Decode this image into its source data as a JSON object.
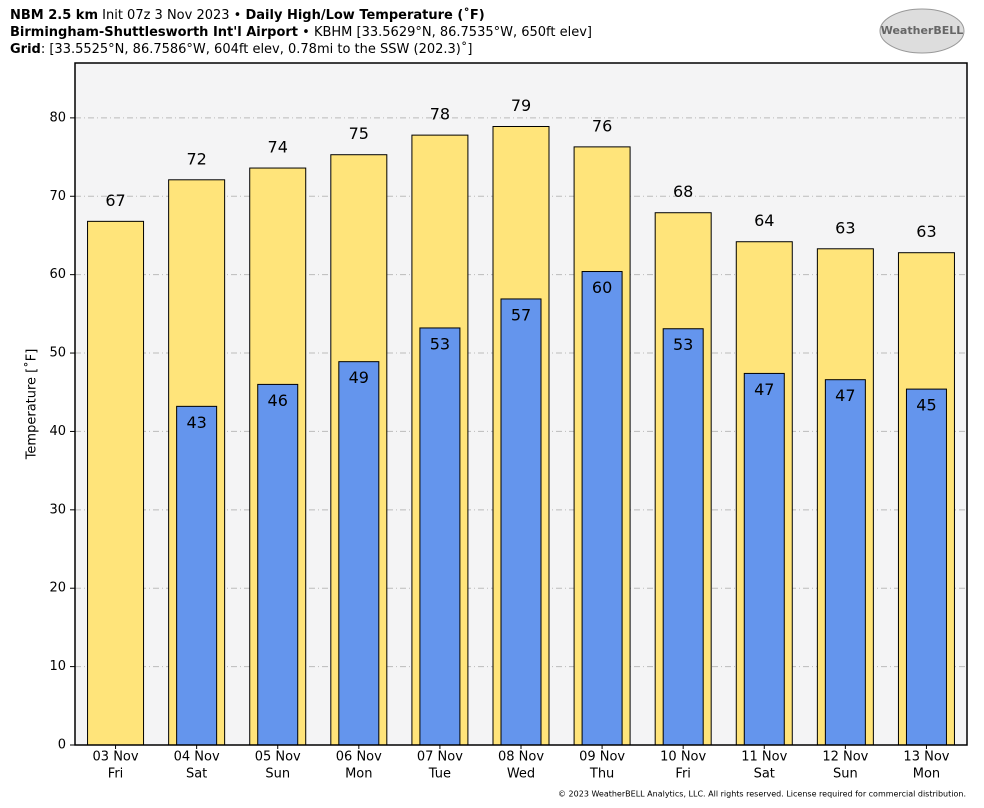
{
  "header": {
    "lines": [
      [
        {
          "text": "NBM 2.5 km",
          "bold": true
        },
        {
          "text": " Init 07z 3 Nov 2023 • ",
          "bold": false
        },
        {
          "text": "Daily High/Low Temperature (˚F)",
          "bold": true
        }
      ],
      [
        {
          "text": "Birmingham-Shuttlesworth Int'l Airport",
          "bold": true
        },
        {
          "text": " • KBHM [33.5629°N, 86.7535°W, 650ft elev]",
          "bold": false
        }
      ],
      [
        {
          "text": "Grid",
          "bold": true
        },
        {
          "text": ": [33.5525°N, 86.7586°W, 604ft elev, 0.78mi to the SSW (202.3)˚]",
          "bold": false
        }
      ]
    ],
    "logo": "WeatherBELL"
  },
  "footer": "© 2023 WeatherBELL Analytics, LLC. All rights reserved. License required for commercial distribution.",
  "chart_data": {
    "type": "bar",
    "y_label": "Temperature [˚F]",
    "categories": [
      [
        "03 Nov",
        "Fri"
      ],
      [
        "04 Nov",
        "Sat"
      ],
      [
        "05 Nov",
        "Sun"
      ],
      [
        "06 Nov",
        "Mon"
      ],
      [
        "07 Nov",
        "Tue"
      ],
      [
        "08 Nov",
        "Wed"
      ],
      [
        "09 Nov",
        "Thu"
      ],
      [
        "10 Nov",
        "Fri"
      ],
      [
        "11 Nov",
        "Sat"
      ],
      [
        "12 Nov",
        "Sun"
      ],
      [
        "13 Nov",
        "Mon"
      ]
    ],
    "series": [
      {
        "name": "High",
        "color": "#ffe47a",
        "values": [
          66.8,
          72.1,
          73.6,
          75.3,
          77.8,
          78.9,
          76.3,
          67.9,
          64.2,
          63.3,
          62.8
        ],
        "value_labels": [
          "67",
          "72",
          "74",
          "75",
          "78",
          "79",
          "76",
          "68",
          "64",
          "63",
          "63"
        ]
      },
      {
        "name": "Low",
        "color": "#6495ed",
        "values": [
          null,
          43.2,
          46.0,
          48.9,
          53.2,
          56.9,
          60.4,
          53.1,
          47.4,
          46.6,
          45.4
        ],
        "value_labels": [
          null,
          "43",
          "46",
          "49",
          "53",
          "57",
          "60",
          "53",
          "47",
          "47",
          "45"
        ]
      }
    ],
    "ylim": [
      0,
      87
    ],
    "yticks": [
      0,
      10,
      20,
      30,
      40,
      50,
      60,
      70,
      80
    ],
    "grid": true
  }
}
